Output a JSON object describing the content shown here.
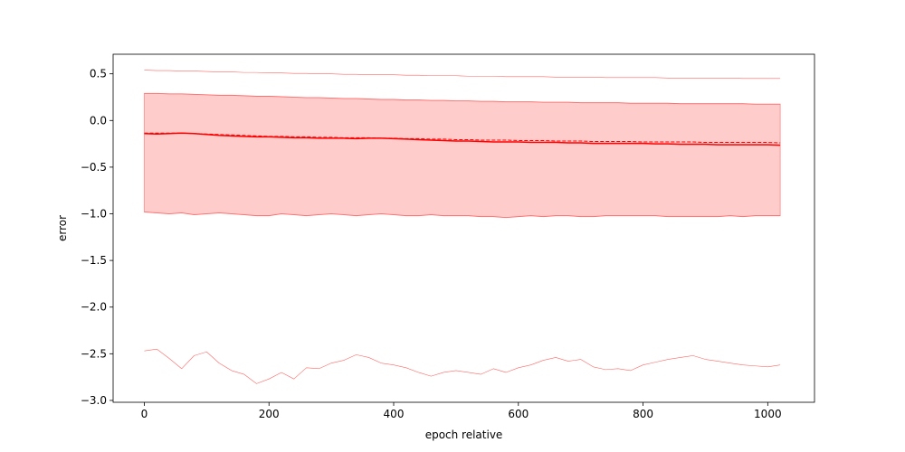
{
  "chart_data": {
    "type": "line",
    "title": "",
    "xlabel": "epoch relative",
    "ylabel": "error",
    "xlim": [
      -50,
      1075
    ],
    "ylim": [
      -3.02,
      0.71
    ],
    "xticks": [
      0,
      200,
      400,
      600,
      800,
      1000
    ],
    "yticks": [
      0.5,
      0.0,
      -0.5,
      -1.0,
      -1.5,
      -2.0,
      -2.5,
      -3.0
    ],
    "xtick_labels": [
      "0",
      "200",
      "400",
      "600",
      "800",
      "1000"
    ],
    "ytick_labels": [
      "0.5",
      "0.0",
      "−0.5",
      "−1.0",
      "−1.5",
      "−2.0",
      "−2.5",
      "−3.0"
    ],
    "grid": false,
    "legend": "none",
    "colors": {
      "line": "#ff0000",
      "band": "#ff9999",
      "band_alpha": 0.5
    },
    "x": [
      0,
      20,
      40,
      60,
      80,
      100,
      120,
      140,
      160,
      180,
      200,
      220,
      240,
      260,
      280,
      300,
      320,
      340,
      360,
      380,
      400,
      420,
      440,
      460,
      480,
      500,
      520,
      540,
      560,
      580,
      600,
      620,
      640,
      660,
      680,
      700,
      720,
      740,
      760,
      780,
      800,
      820,
      840,
      860,
      880,
      900,
      920,
      940,
      960,
      980,
      1000,
      1020
    ],
    "series": [
      {
        "role": "max",
        "style": "thin",
        "values": [
          0.54,
          0.535,
          0.535,
          0.53,
          0.53,
          0.525,
          0.52,
          0.52,
          0.515,
          0.515,
          0.51,
          0.51,
          0.505,
          0.505,
          0.5,
          0.5,
          0.495,
          0.495,
          0.49,
          0.49,
          0.49,
          0.485,
          0.485,
          0.48,
          0.48,
          0.48,
          0.475,
          0.475,
          0.475,
          0.47,
          0.47,
          0.47,
          0.47,
          0.465,
          0.465,
          0.465,
          0.465,
          0.46,
          0.46,
          0.46,
          0.46,
          0.46,
          0.455,
          0.455,
          0.455,
          0.455,
          0.455,
          0.455,
          0.45,
          0.45,
          0.45,
          0.45
        ]
      },
      {
        "role": "upper",
        "style": "band-edge",
        "values": [
          0.29,
          0.29,
          0.285,
          0.285,
          0.28,
          0.275,
          0.27,
          0.27,
          0.265,
          0.26,
          0.26,
          0.255,
          0.25,
          0.245,
          0.245,
          0.24,
          0.235,
          0.235,
          0.23,
          0.225,
          0.225,
          0.22,
          0.22,
          0.215,
          0.215,
          0.21,
          0.21,
          0.205,
          0.205,
          0.2,
          0.2,
          0.2,
          0.195,
          0.195,
          0.195,
          0.19,
          0.19,
          0.19,
          0.19,
          0.185,
          0.185,
          0.185,
          0.185,
          0.18,
          0.18,
          0.18,
          0.18,
          0.18,
          0.18,
          0.175,
          0.175,
          0.175
        ]
      },
      {
        "role": "mean",
        "style": "solid",
        "values": [
          -0.14,
          -0.145,
          -0.14,
          -0.135,
          -0.14,
          -0.15,
          -0.16,
          -0.165,
          -0.17,
          -0.175,
          -0.175,
          -0.18,
          -0.185,
          -0.185,
          -0.19,
          -0.19,
          -0.19,
          -0.195,
          -0.19,
          -0.19,
          -0.195,
          -0.2,
          -0.205,
          -0.21,
          -0.215,
          -0.22,
          -0.22,
          -0.225,
          -0.23,
          -0.23,
          -0.23,
          -0.235,
          -0.235,
          -0.235,
          -0.24,
          -0.24,
          -0.245,
          -0.245,
          -0.245,
          -0.245,
          -0.245,
          -0.25,
          -0.25,
          -0.255,
          -0.255,
          -0.255,
          -0.26,
          -0.26,
          -0.26,
          -0.26,
          -0.26,
          -0.265
        ]
      },
      {
        "role": "median",
        "style": "dashed",
        "values": [
          -0.135,
          -0.135,
          -0.135,
          -0.135,
          -0.14,
          -0.145,
          -0.15,
          -0.155,
          -0.16,
          -0.165,
          -0.17,
          -0.17,
          -0.175,
          -0.175,
          -0.18,
          -0.18,
          -0.185,
          -0.185,
          -0.185,
          -0.19,
          -0.19,
          -0.195,
          -0.195,
          -0.2,
          -0.2,
          -0.205,
          -0.205,
          -0.21,
          -0.21,
          -0.21,
          -0.215,
          -0.215,
          -0.215,
          -0.22,
          -0.22,
          -0.22,
          -0.225,
          -0.225,
          -0.225,
          -0.225,
          -0.23,
          -0.23,
          -0.23,
          -0.23,
          -0.23,
          -0.235,
          -0.235,
          -0.235,
          -0.235,
          -0.235,
          -0.235,
          -0.24
        ]
      },
      {
        "role": "lower",
        "style": "band-edge",
        "values": [
          -0.98,
          -0.99,
          -1.0,
          -0.99,
          -1.01,
          -1.0,
          -0.99,
          -1.0,
          -1.01,
          -1.02,
          -1.02,
          -1.0,
          -1.01,
          -1.02,
          -1.01,
          -1.0,
          -1.01,
          -1.02,
          -1.01,
          -1.0,
          -1.01,
          -1.02,
          -1.02,
          -1.01,
          -1.02,
          -1.02,
          -1.02,
          -1.03,
          -1.03,
          -1.04,
          -1.03,
          -1.02,
          -1.03,
          -1.02,
          -1.02,
          -1.03,
          -1.03,
          -1.02,
          -1.02,
          -1.02,
          -1.02,
          -1.02,
          -1.03,
          -1.03,
          -1.03,
          -1.03,
          -1.03,
          -1.02,
          -1.03,
          -1.02,
          -1.02,
          -1.02
        ]
      },
      {
        "role": "min",
        "style": "thin",
        "values": [
          -2.47,
          -2.45,
          -2.55,
          -2.66,
          -2.52,
          -2.48,
          -2.6,
          -2.68,
          -2.72,
          -2.82,
          -2.77,
          -2.7,
          -2.77,
          -2.65,
          -2.66,
          -2.6,
          -2.57,
          -2.51,
          -2.54,
          -2.6,
          -2.62,
          -2.65,
          -2.7,
          -2.74,
          -2.7,
          -2.68,
          -2.7,
          -2.72,
          -2.66,
          -2.7,
          -2.65,
          -2.62,
          -2.57,
          -2.54,
          -2.58,
          -2.56,
          -2.64,
          -2.67,
          -2.66,
          -2.68,
          -2.62,
          -2.59,
          -2.56,
          -2.54,
          -2.52,
          -2.56,
          -2.58,
          -2.6,
          -2.62,
          -2.63,
          -2.64,
          -2.62
        ]
      }
    ]
  }
}
